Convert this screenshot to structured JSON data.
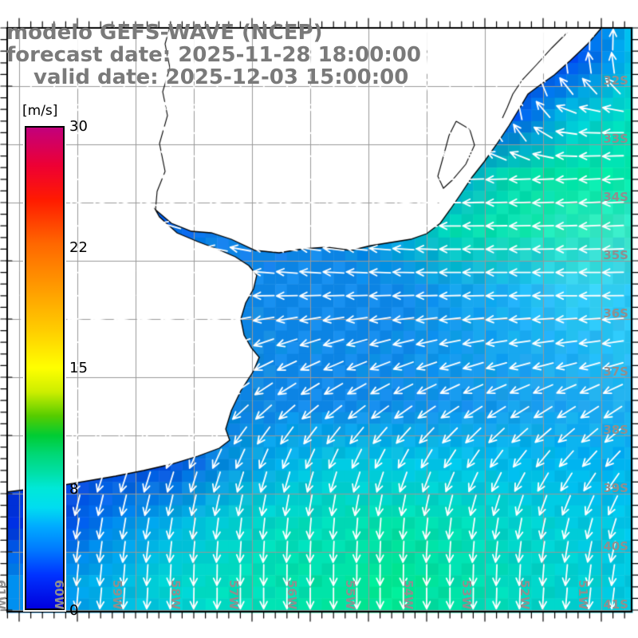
{
  "header": {
    "line1": "modelo GEFS-WAVE (NCEP)",
    "line2": "forecast date: 2025-11-28 18:00:00",
    "line3": "valid date: 2025-12-03 15:00:00",
    "text_color": "#7a7a7a"
  },
  "colorbar": {
    "unit_label": "[m/s]",
    "min": 0,
    "max": 30,
    "tick_labels": [
      "30",
      "22",
      "15",
      "8",
      "0"
    ],
    "gradient_stops": [
      [
        0,
        "#c2007c"
      ],
      [
        8,
        "#ee0033"
      ],
      [
        15,
        "#ff1a00"
      ],
      [
        24,
        "#ff6600"
      ],
      [
        33,
        "#ff9900"
      ],
      [
        42,
        "#ffcc00"
      ],
      [
        50,
        "#ffff00"
      ],
      [
        55,
        "#ccee00"
      ],
      [
        60,
        "#55cc00"
      ],
      [
        64,
        "#00cc33"
      ],
      [
        68,
        "#00d877"
      ],
      [
        72,
        "#00e0aa"
      ],
      [
        75,
        "#00e8d8"
      ],
      [
        79,
        "#00ddf0"
      ],
      [
        83,
        "#00aaff"
      ],
      [
        88,
        "#0077ff"
      ],
      [
        93,
        "#0033ff"
      ],
      [
        100,
        "#0000dd"
      ]
    ]
  },
  "xaxis": {
    "labels": [
      "61W",
      "60W",
      "59W",
      "58W",
      "57W",
      "56W",
      "55W",
      "54W",
      "53W",
      "52W",
      "51W"
    ]
  },
  "yaxis": {
    "labels": [
      "32S",
      "33S",
      "34S",
      "35S",
      "36S",
      "37S",
      "38S",
      "39S",
      "40S",
      "41S"
    ]
  },
  "map_colors": {
    "land": "#ffffff",
    "coastline": "#000000",
    "grid_lines": "#999999",
    "frame": "#000000",
    "arrows": "#ffffff",
    "axis_label_gray": "#8f8f8f"
  },
  "wave_field": {
    "type": "vector-field-map",
    "lon_grid_deg_w": [
      61,
      60,
      59,
      58,
      57,
      56,
      55,
      54,
      53,
      52,
      51
    ],
    "lat_grid_deg_s": [
      31.9,
      32.9,
      33.9,
      34.9,
      35.9,
      36.9,
      37.9,
      38.9,
      39.9,
      40.9
    ],
    "grid_colors": [
      [
        "#0040e0",
        "#0040e0",
        "#0040e0",
        "#0040e0",
        "#0040e0",
        "#0040e0",
        "#0040e0",
        "#0040e0",
        "#0033dd",
        "#0044ee",
        "#00bbee"
      ],
      [
        "#0040e0",
        "#0040e0",
        "#0040e0",
        "#0040e0",
        "#0040e0",
        "#0040e0",
        "#0040e0",
        "#0044ee",
        "#0055ee",
        "#00c4e0",
        "#00dcc0"
      ],
      [
        "#0055ee",
        "#0055ee",
        "#0055ee",
        "#0055ee",
        "#0055ee",
        "#0055ee",
        "#0066ff",
        "#00aadd",
        "#00dca8",
        "#00e4a4",
        "#00e6a8"
      ],
      [
        "#0066ee",
        "#0066ee",
        "#0066ee",
        "#1183e8",
        "#1183e8",
        "#0d86e6",
        "#00aadd",
        "#00d8b0",
        "#10e4b0",
        "#2ae6bc",
        "#3ae8c8"
      ],
      [
        "#0d86e6",
        "#0d86e6",
        "#0d86e6",
        "#0d86e6",
        "#0d86e6",
        "#0d86e6",
        "#0d86e6",
        "#12a0ee",
        "#1ab2f2",
        "#35d2f2",
        "#2fcbf2"
      ],
      [
        "#0a80dd",
        "#0a80dd",
        "#0a80dd",
        "#0a80dd",
        "#0f8ae6",
        "#0f8ae6",
        "#108ce8",
        "#129aee",
        "#18a8f0",
        "#20b4f2",
        "#28c4f2"
      ],
      [
        "#0a82dd",
        "#0a82dd",
        "#0a82dd",
        "#0a82dd",
        "#0f88e6",
        "#1088e8",
        "#118ee8",
        "#1494ec",
        "#189eee",
        "#1ca6f0",
        "#1eaef0"
      ],
      [
        "#0448dd",
        "#0448dd",
        "#0448dd",
        "#0b8ce0",
        "#00b4e8",
        "#00c8e0",
        "#00c8e4",
        "#00c4e8",
        "#00bcec",
        "#00b6f0",
        "#00b0f0"
      ],
      [
        "#0030dd",
        "#0080ee",
        "#00b0e6",
        "#00ccd8",
        "#00d8c4",
        "#00dcb4",
        "#00e0a8",
        "#00dcb8",
        "#00d4cc",
        "#00ccdc",
        "#00c4ea"
      ],
      [
        "#0090f0",
        "#00b0e4",
        "#00d0d6",
        "#00dcc0",
        "#00e0b0",
        "#00e4a0",
        "#00e692",
        "#00e0a8",
        "#00d8c0",
        "#00d0d0",
        "#00c8e0"
      ]
    ],
    "arrow_dirs_deg_screen": [
      [
        270,
        270,
        270,
        270,
        270,
        270,
        270,
        270,
        270,
        270,
        272
      ],
      [
        220,
        220,
        220,
        220,
        220,
        220,
        220,
        250,
        265,
        185,
        180
      ],
      [
        200,
        200,
        200,
        200,
        200,
        200,
        195,
        178,
        178,
        177,
        177
      ],
      [
        195,
        195,
        195,
        195,
        192,
        190,
        185,
        180,
        179,
        178,
        177
      ],
      [
        185,
        185,
        185,
        182,
        181,
        180,
        180,
        180,
        180,
        181,
        180
      ],
      [
        160,
        160,
        158,
        157,
        160,
        162,
        165,
        168,
        171,
        172,
        170
      ],
      [
        140,
        140,
        140,
        140,
        142,
        145,
        148,
        150,
        151,
        150,
        148
      ],
      [
        112,
        112,
        110,
        112,
        110,
        112,
        115,
        120,
        125,
        130,
        132
      ],
      [
        100,
        100,
        100,
        98,
        96,
        95,
        95,
        98,
        101,
        105,
        110
      ],
      [
        95,
        95,
        92,
        90,
        90,
        90,
        90,
        90,
        92,
        95,
        98
      ]
    ]
  }
}
